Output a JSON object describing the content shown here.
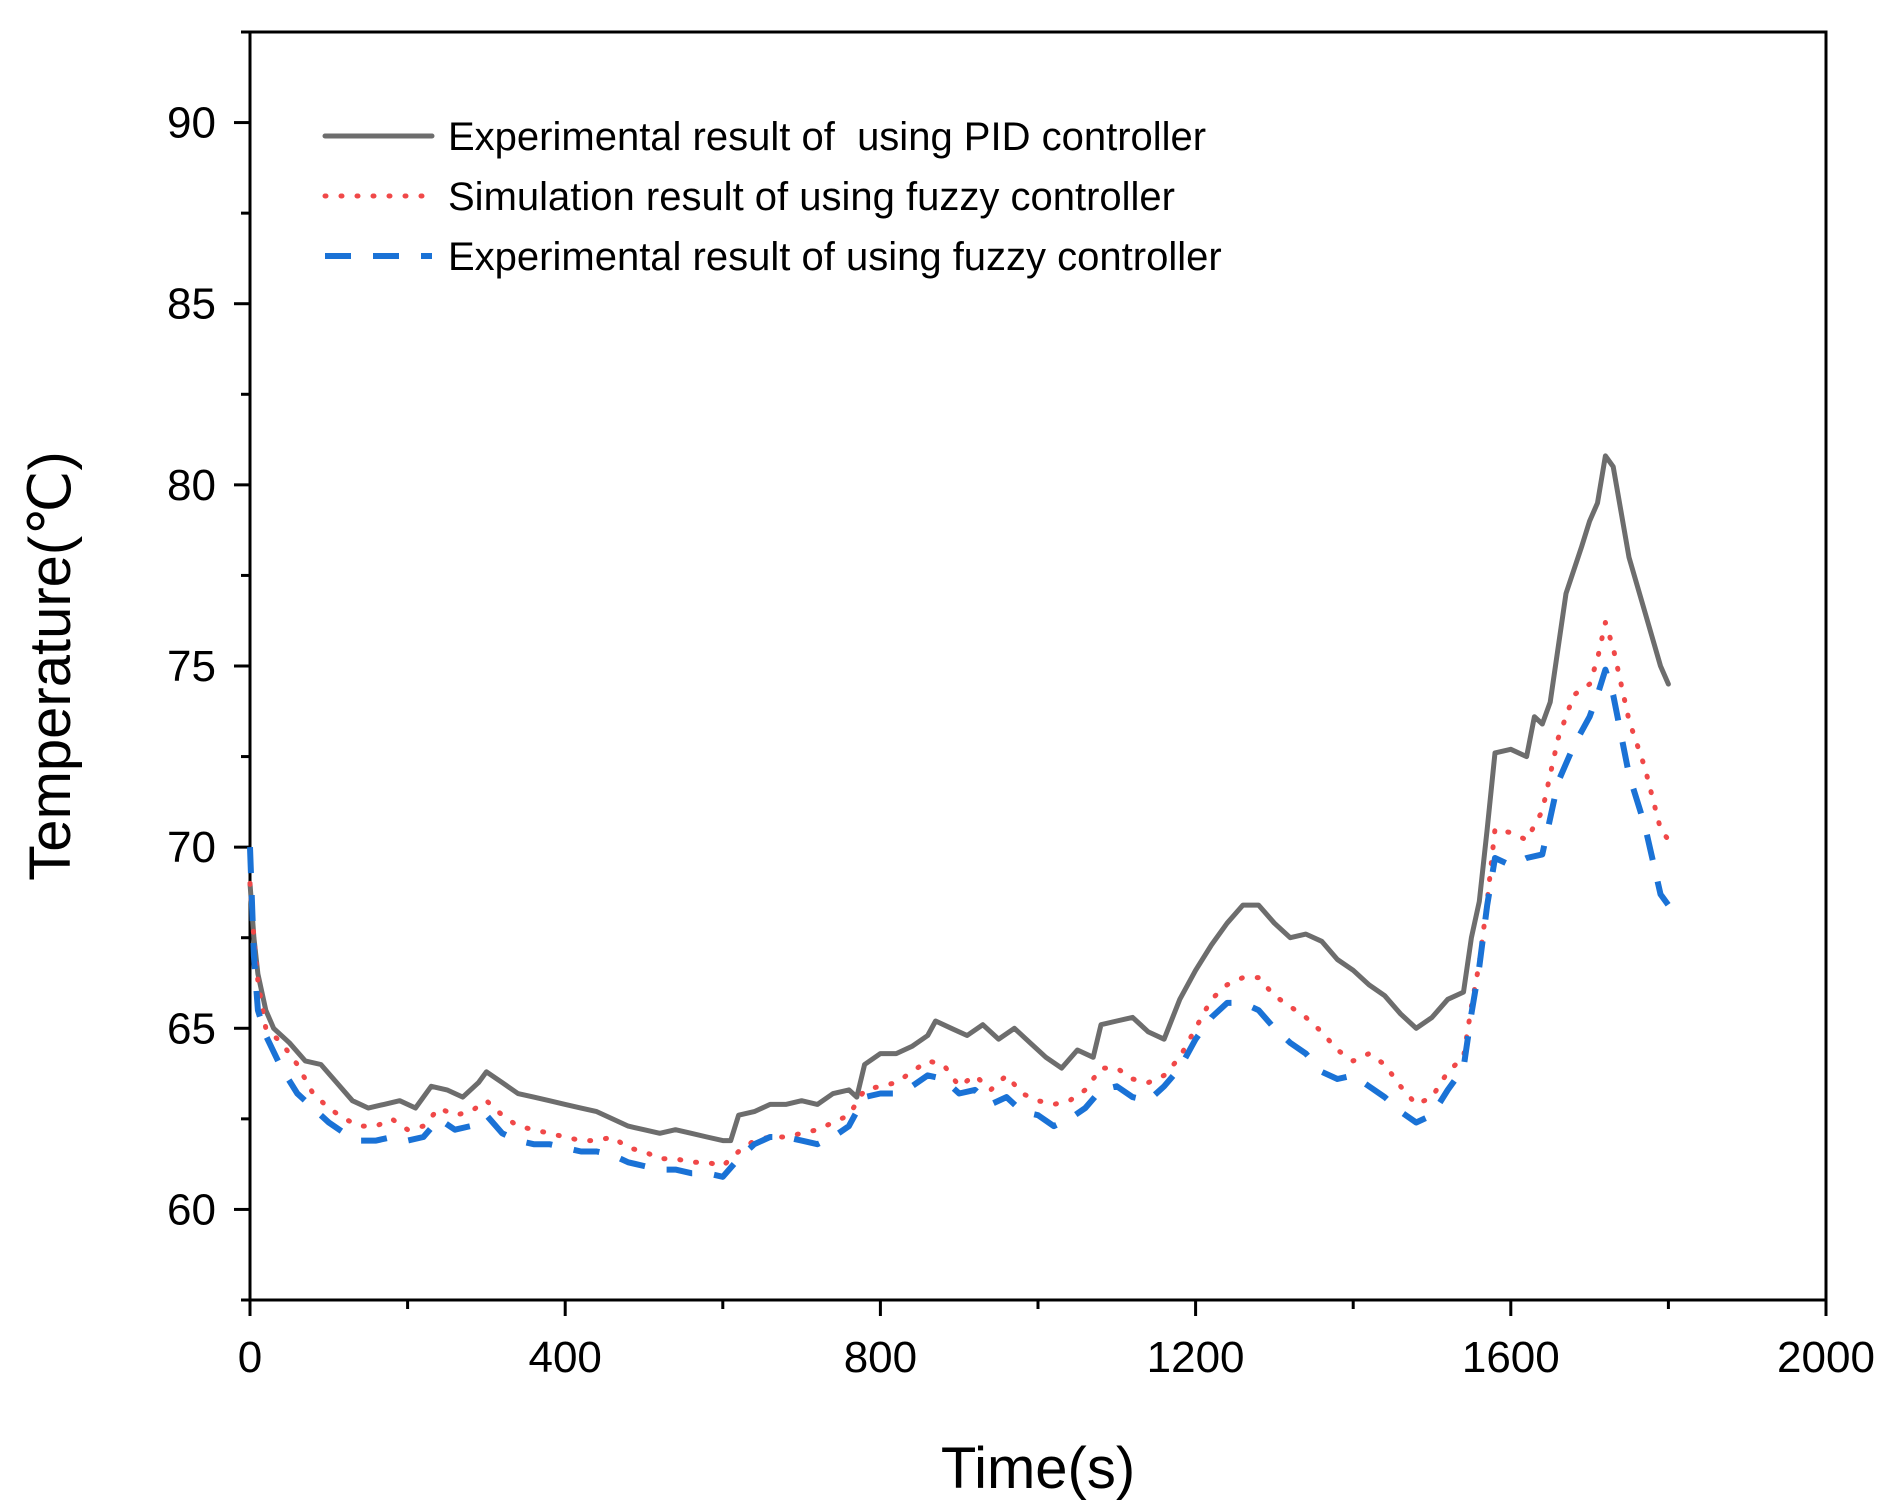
{
  "chart_data": {
    "type": "line",
    "title": "",
    "xlabel": "Time(s)",
    "ylabel": "Temperature(℃)",
    "xlim": [
      0,
      2000
    ],
    "ylim": [
      57.5,
      92.5
    ],
    "xticks": [
      0,
      400,
      800,
      1200,
      1600,
      2000
    ],
    "yticks": [
      60,
      65,
      70,
      75,
      80,
      85,
      90
    ],
    "grid": false,
    "legend_position": "top-left",
    "series": [
      {
        "name": "Experimental result of  using PID controller",
        "color": "#6d6d6d",
        "style": "solid",
        "points": [
          [
            0,
            69.0
          ],
          [
            5,
            67.5
          ],
          [
            10,
            66.5
          ],
          [
            20,
            65.5
          ],
          [
            30,
            65.0
          ],
          [
            50,
            64.6
          ],
          [
            70,
            64.1
          ],
          [
            90,
            64.0
          ],
          [
            110,
            63.5
          ],
          [
            130,
            63.0
          ],
          [
            150,
            62.8
          ],
          [
            170,
            62.9
          ],
          [
            190,
            63.0
          ],
          [
            210,
            62.8
          ],
          [
            230,
            63.4
          ],
          [
            250,
            63.3
          ],
          [
            270,
            63.1
          ],
          [
            290,
            63.5
          ],
          [
            300,
            63.8
          ],
          [
            320,
            63.5
          ],
          [
            340,
            63.2
          ],
          [
            360,
            63.1
          ],
          [
            380,
            63.0
          ],
          [
            400,
            62.9
          ],
          [
            420,
            62.8
          ],
          [
            440,
            62.7
          ],
          [
            460,
            62.5
          ],
          [
            480,
            62.3
          ],
          [
            500,
            62.2
          ],
          [
            520,
            62.1
          ],
          [
            540,
            62.2
          ],
          [
            560,
            62.1
          ],
          [
            580,
            62.0
          ],
          [
            600,
            61.9
          ],
          [
            610,
            61.9
          ],
          [
            620,
            62.6
          ],
          [
            640,
            62.7
          ],
          [
            660,
            62.9
          ],
          [
            680,
            62.9
          ],
          [
            700,
            63.0
          ],
          [
            720,
            62.9
          ],
          [
            740,
            63.2
          ],
          [
            760,
            63.3
          ],
          [
            770,
            63.1
          ],
          [
            780,
            64.0
          ],
          [
            800,
            64.3
          ],
          [
            820,
            64.3
          ],
          [
            840,
            64.5
          ],
          [
            860,
            64.8
          ],
          [
            870,
            65.2
          ],
          [
            890,
            65.0
          ],
          [
            910,
            64.8
          ],
          [
            930,
            65.1
          ],
          [
            950,
            64.7
          ],
          [
            970,
            65.0
          ],
          [
            990,
            64.6
          ],
          [
            1010,
            64.2
          ],
          [
            1030,
            63.9
          ],
          [
            1050,
            64.4
          ],
          [
            1070,
            64.2
          ],
          [
            1080,
            65.1
          ],
          [
            1100,
            65.2
          ],
          [
            1120,
            65.3
          ],
          [
            1140,
            64.9
          ],
          [
            1160,
            64.7
          ],
          [
            1180,
            65.8
          ],
          [
            1200,
            66.6
          ],
          [
            1220,
            67.3
          ],
          [
            1240,
            67.9
          ],
          [
            1260,
            68.4
          ],
          [
            1280,
            68.4
          ],
          [
            1300,
            67.9
          ],
          [
            1320,
            67.5
          ],
          [
            1340,
            67.6
          ],
          [
            1360,
            67.4
          ],
          [
            1380,
            66.9
          ],
          [
            1400,
            66.6
          ],
          [
            1420,
            66.2
          ],
          [
            1440,
            65.9
          ],
          [
            1460,
            65.4
          ],
          [
            1480,
            65.0
          ],
          [
            1500,
            65.3
          ],
          [
            1520,
            65.8
          ],
          [
            1540,
            66.0
          ],
          [
            1550,
            67.5
          ],
          [
            1560,
            68.5
          ],
          [
            1570,
            70.5
          ],
          [
            1580,
            72.6
          ],
          [
            1600,
            72.7
          ],
          [
            1620,
            72.5
          ],
          [
            1630,
            73.6
          ],
          [
            1640,
            73.4
          ],
          [
            1650,
            74.0
          ],
          [
            1660,
            75.5
          ],
          [
            1670,
            77.0
          ],
          [
            1690,
            78.3
          ],
          [
            1700,
            79.0
          ],
          [
            1710,
            79.5
          ],
          [
            1720,
            80.8
          ],
          [
            1730,
            80.5
          ],
          [
            1750,
            78.0
          ],
          [
            1770,
            76.5
          ],
          [
            1790,
            75.0
          ],
          [
            1800,
            74.5
          ]
        ]
      },
      {
        "name": "Simulation result of using fuzzy controller",
        "color": "#f04848",
        "style": "dotted",
        "points": [
          [
            0,
            69.0
          ],
          [
            5,
            67.5
          ],
          [
            10,
            66.3
          ],
          [
            20,
            65.0
          ],
          [
            40,
            64.6
          ],
          [
            60,
            64.0
          ],
          [
            80,
            63.2
          ],
          [
            100,
            62.8
          ],
          [
            120,
            62.5
          ],
          [
            140,
            62.3
          ],
          [
            160,
            62.3
          ],
          [
            180,
            62.5
          ],
          [
            200,
            62.2
          ],
          [
            220,
            62.3
          ],
          [
            240,
            62.8
          ],
          [
            260,
            62.6
          ],
          [
            280,
            62.7
          ],
          [
            300,
            63.0
          ],
          [
            320,
            62.6
          ],
          [
            340,
            62.3
          ],
          [
            360,
            62.2
          ],
          [
            380,
            62.1
          ],
          [
            400,
            62.0
          ],
          [
            420,
            61.9
          ],
          [
            440,
            61.9
          ],
          [
            460,
            62.0
          ],
          [
            480,
            61.7
          ],
          [
            500,
            61.6
          ],
          [
            520,
            61.4
          ],
          [
            540,
            61.4
          ],
          [
            560,
            61.3
          ],
          [
            580,
            61.3
          ],
          [
            600,
            61.2
          ],
          [
            620,
            61.6
          ],
          [
            640,
            61.9
          ],
          [
            660,
            62.0
          ],
          [
            680,
            62.0
          ],
          [
            700,
            62.1
          ],
          [
            720,
            62.2
          ],
          [
            740,
            62.4
          ],
          [
            760,
            62.6
          ],
          [
            780,
            63.3
          ],
          [
            800,
            63.4
          ],
          [
            820,
            63.5
          ],
          [
            840,
            63.8
          ],
          [
            860,
            64.1
          ],
          [
            880,
            64.0
          ],
          [
            900,
            63.4
          ],
          [
            920,
            63.7
          ],
          [
            940,
            63.3
          ],
          [
            960,
            63.7
          ],
          [
            980,
            63.2
          ],
          [
            1000,
            63.0
          ],
          [
            1020,
            62.9
          ],
          [
            1040,
            63.0
          ],
          [
            1060,
            63.3
          ],
          [
            1080,
            63.9
          ],
          [
            1100,
            63.9
          ],
          [
            1120,
            63.6
          ],
          [
            1140,
            63.5
          ],
          [
            1160,
            63.7
          ],
          [
            1180,
            64.2
          ],
          [
            1200,
            65.0
          ],
          [
            1220,
            65.8
          ],
          [
            1240,
            66.2
          ],
          [
            1260,
            66.4
          ],
          [
            1280,
            66.4
          ],
          [
            1300,
            65.9
          ],
          [
            1320,
            65.6
          ],
          [
            1340,
            65.3
          ],
          [
            1360,
            64.9
          ],
          [
            1380,
            64.4
          ],
          [
            1400,
            64.1
          ],
          [
            1420,
            64.3
          ],
          [
            1440,
            64.0
          ],
          [
            1460,
            63.4
          ],
          [
            1480,
            62.9
          ],
          [
            1500,
            63.1
          ],
          [
            1520,
            63.8
          ],
          [
            1540,
            64.2
          ],
          [
            1550,
            65.6
          ],
          [
            1560,
            66.8
          ],
          [
            1570,
            68.5
          ],
          [
            1580,
            70.5
          ],
          [
            1600,
            70.4
          ],
          [
            1620,
            70.2
          ],
          [
            1640,
            71.0
          ],
          [
            1660,
            73.0
          ],
          [
            1680,
            74.2
          ],
          [
            1700,
            74.5
          ],
          [
            1710,
            75.2
          ],
          [
            1720,
            76.2
          ],
          [
            1730,
            75.5
          ],
          [
            1750,
            73.5
          ],
          [
            1770,
            72.2
          ],
          [
            1790,
            70.5
          ],
          [
            1800,
            70.2
          ]
        ]
      },
      {
        "name": "Experimental result of using fuzzy controller",
        "color": "#1a72d6",
        "style": "dashed",
        "points": [
          [
            0,
            70.0
          ],
          [
            5,
            67.0
          ],
          [
            10,
            65.5
          ],
          [
            20,
            64.8
          ],
          [
            40,
            63.9
          ],
          [
            60,
            63.2
          ],
          [
            80,
            62.8
          ],
          [
            100,
            62.4
          ],
          [
            120,
            62.1
          ],
          [
            140,
            61.9
          ],
          [
            160,
            61.9
          ],
          [
            180,
            62.0
          ],
          [
            200,
            61.9
          ],
          [
            220,
            62.0
          ],
          [
            240,
            62.5
          ],
          [
            260,
            62.2
          ],
          [
            280,
            62.3
          ],
          [
            300,
            62.6
          ],
          [
            320,
            62.1
          ],
          [
            340,
            61.9
          ],
          [
            360,
            61.8
          ],
          [
            380,
            61.8
          ],
          [
            400,
            61.7
          ],
          [
            420,
            61.6
          ],
          [
            440,
            61.6
          ],
          [
            460,
            61.5
          ],
          [
            480,
            61.3
          ],
          [
            500,
            61.2
          ],
          [
            520,
            61.1
          ],
          [
            540,
            61.1
          ],
          [
            560,
            61.0
          ],
          [
            580,
            61.0
          ],
          [
            600,
            60.9
          ],
          [
            620,
            61.4
          ],
          [
            640,
            61.8
          ],
          [
            660,
            62.0
          ],
          [
            680,
            62.0
          ],
          [
            700,
            61.9
          ],
          [
            720,
            61.8
          ],
          [
            740,
            62.0
          ],
          [
            760,
            62.3
          ],
          [
            780,
            63.1
          ],
          [
            800,
            63.2
          ],
          [
            820,
            63.2
          ],
          [
            840,
            63.4
          ],
          [
            860,
            63.7
          ],
          [
            880,
            63.6
          ],
          [
            900,
            63.2
          ],
          [
            920,
            63.3
          ],
          [
            940,
            62.9
          ],
          [
            960,
            63.1
          ],
          [
            980,
            62.7
          ],
          [
            1000,
            62.6
          ],
          [
            1020,
            62.3
          ],
          [
            1040,
            62.5
          ],
          [
            1060,
            62.8
          ],
          [
            1080,
            63.3
          ],
          [
            1100,
            63.4
          ],
          [
            1120,
            63.1
          ],
          [
            1140,
            63.0
          ],
          [
            1160,
            63.4
          ],
          [
            1180,
            63.9
          ],
          [
            1200,
            64.7
          ],
          [
            1220,
            65.3
          ],
          [
            1240,
            65.7
          ],
          [
            1260,
            65.7
          ],
          [
            1280,
            65.5
          ],
          [
            1300,
            65.0
          ],
          [
            1320,
            64.6
          ],
          [
            1340,
            64.3
          ],
          [
            1360,
            63.8
          ],
          [
            1380,
            63.6
          ],
          [
            1400,
            63.7
          ],
          [
            1420,
            63.4
          ],
          [
            1440,
            63.1
          ],
          [
            1460,
            62.7
          ],
          [
            1480,
            62.4
          ],
          [
            1500,
            62.6
          ],
          [
            1520,
            63.3
          ],
          [
            1540,
            63.9
          ],
          [
            1550,
            65.4
          ],
          [
            1560,
            66.7
          ],
          [
            1570,
            68.4
          ],
          [
            1580,
            69.7
          ],
          [
            1600,
            69.5
          ],
          [
            1620,
            69.7
          ],
          [
            1640,
            69.8
          ],
          [
            1660,
            71.8
          ],
          [
            1680,
            72.8
          ],
          [
            1700,
            73.6
          ],
          [
            1710,
            74.2
          ],
          [
            1720,
            74.9
          ],
          [
            1730,
            74.2
          ],
          [
            1750,
            72.0
          ],
          [
            1770,
            70.6
          ],
          [
            1790,
            68.7
          ],
          [
            1800,
            68.4
          ]
        ]
      }
    ]
  }
}
